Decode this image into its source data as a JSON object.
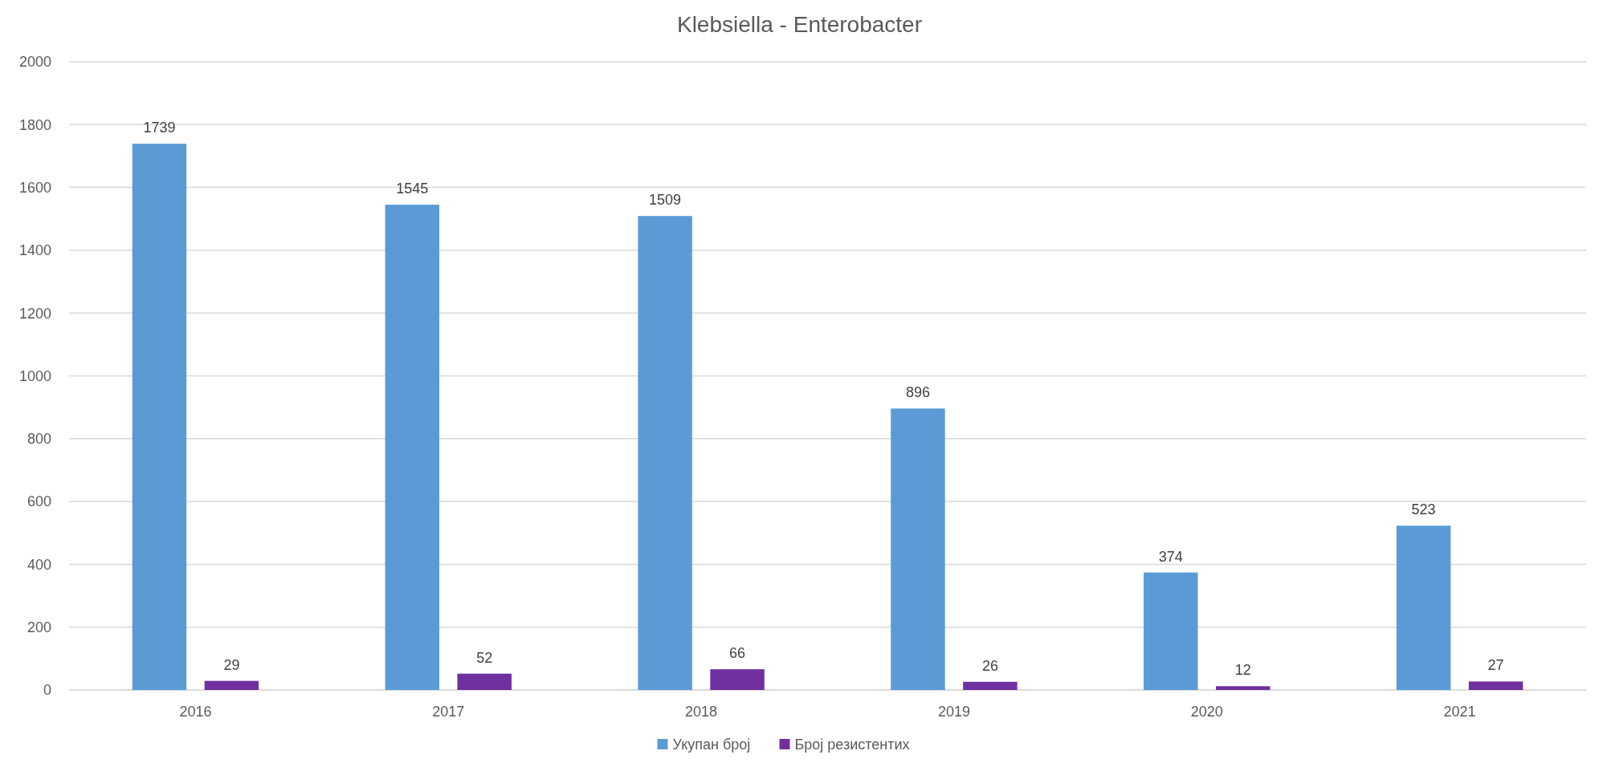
{
  "chart_data": {
    "type": "bar",
    "title": "Klebsiella - Enterobacter",
    "categories": [
      "2016",
      "2017",
      "2018",
      "2019",
      "2020",
      "2021"
    ],
    "series": [
      {
        "name": "Укупан број",
        "color": "#5b9bd5",
        "values": [
          1739,
          1545,
          1509,
          896,
          374,
          523
        ]
      },
      {
        "name": "Број резистентих",
        "color": "#7030a0",
        "values": [
          29,
          52,
          66,
          26,
          12,
          27
        ]
      }
    ],
    "ylim": [
      0,
      2000
    ],
    "yticks": [
      0,
      200,
      400,
      600,
      800,
      1000,
      1200,
      1400,
      1600,
      1800,
      2000
    ],
    "grid": "y",
    "legend": "bottom",
    "data_labels": true
  }
}
